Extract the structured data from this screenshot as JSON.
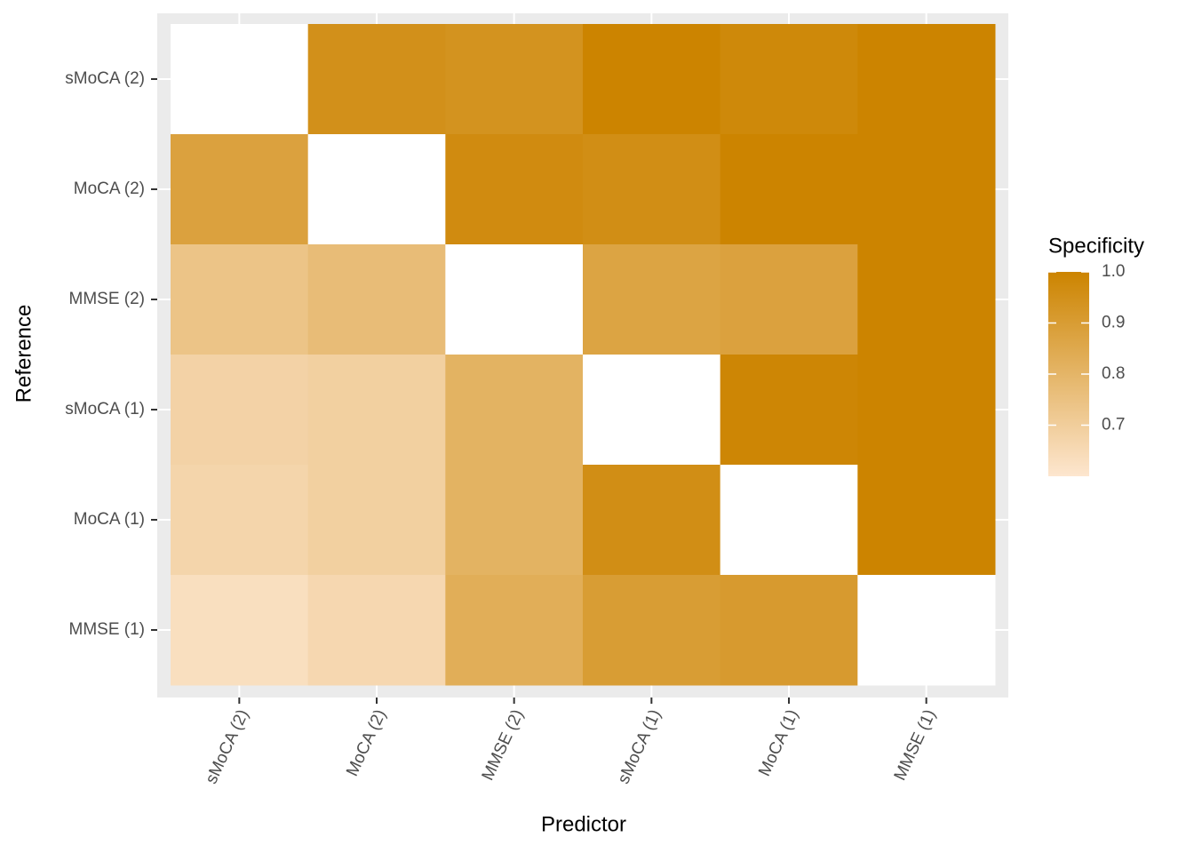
{
  "chart_data": {
    "type": "heatmap",
    "x_label": "Predictor",
    "y_label": "Reference",
    "x_categories": [
      "sMoCA (2)",
      "MoCA (2)",
      "MMSE (2)",
      "sMoCA (1)",
      "MoCA (1)",
      "MMSE (1)"
    ],
    "y_categories": [
      "sMoCA (2)",
      "MoCA (2)",
      "MMSE (2)",
      "sMoCA (1)",
      "MoCA (1)",
      "MMSE (1)"
    ],
    "values": [
      [
        null,
        0.95,
        0.94,
        1.0,
        0.98,
        1.0
      ],
      [
        0.88,
        null,
        0.97,
        0.96,
        1.0,
        1.0
      ],
      [
        0.74,
        0.77,
        null,
        0.87,
        0.88,
        1.0
      ],
      [
        0.68,
        0.69,
        0.81,
        null,
        0.99,
        1.0
      ],
      [
        0.67,
        0.69,
        0.81,
        0.96,
        null,
        1.0
      ],
      [
        0.63,
        0.66,
        0.83,
        0.9,
        0.91,
        null
      ]
    ],
    "legend_title": "Specificity",
    "color_limits": [
      0.6,
      1.0
    ],
    "low_color": "#fde6cf",
    "high_color": "#cc8400",
    "na_color": "#ffffff",
    "legend_ticks": [
      0.7,
      0.8,
      0.9,
      {
        "value": 1.0,
        "label": "1.0"
      }
    ],
    "grid": true
  }
}
